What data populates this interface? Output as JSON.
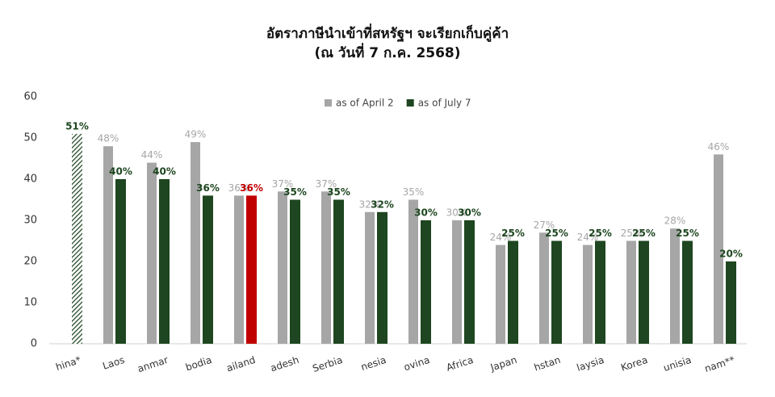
{
  "chart_data": {
    "type": "bar",
    "title": "อัตราภาษีนำเข้าที่สหรัฐฯ จะเรียกเก็บคู่ค้า",
    "subtitle": "(ณ วันที่ 7 ก.ค. 2568)",
    "categories": [
      "hina*",
      "Laos",
      "anmar",
      "bodia",
      "ailand",
      "adesh",
      "Serbia",
      "nesia",
      "ovina",
      "Africa",
      "Japan",
      "hstan",
      "laysia",
      "Korea",
      "unisia",
      "nam**"
    ],
    "series": [
      {
        "name": "as of April 2",
        "color": "#a6a6a6",
        "values": [
          null,
          48,
          44,
          49,
          36,
          37,
          37,
          32,
          35,
          30,
          24,
          27,
          24,
          25,
          28,
          46
        ],
        "value_labels": [
          null,
          "48%",
          "44%",
          "49%",
          "36%",
          "37%",
          "37%",
          "32%",
          "35%",
          "30%",
          "24%",
          "27%",
          "24%",
          "25%",
          "28%",
          "46%"
        ]
      },
      {
        "name": "as of July 7",
        "color": "#1e4620",
        "colors": [
          "hatch",
          "#1e4620",
          "#1e4620",
          "#1e4620",
          "#c00000",
          "#1e4620",
          "#1e4620",
          "#1e4620",
          "#1e4620",
          "#1e4620",
          "#1e4620",
          "#1e4620",
          "#1e4620",
          "#1e4620",
          "#1e4620",
          "#1e4620"
        ],
        "values": [
          51,
          40,
          40,
          36,
          36,
          35,
          35,
          32,
          30,
          30,
          25,
          25,
          25,
          25,
          25,
          20
        ],
        "value_labels": [
          "51%",
          "40%",
          "40%",
          "36%",
          "36%",
          "35%",
          "35%",
          "32%",
          "30%",
          "30%",
          "25%",
          "25%",
          "25%",
          "25%",
          "25%",
          "20%"
        ]
      }
    ],
    "ylim": [
      0,
      60
    ],
    "yticks": [
      0,
      10,
      20,
      30,
      40,
      50,
      60
    ],
    "grid": false
  }
}
